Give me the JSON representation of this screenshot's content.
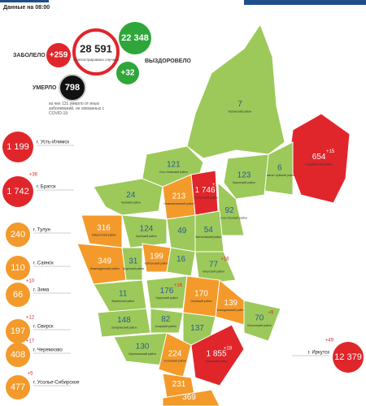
{
  "header": {
    "date": "Данные на 08:00"
  },
  "stats": {
    "sick_label": "ЗАБОЛЕЛО",
    "sick_delta": "+259",
    "total": "28 591",
    "total_caption": "зарегистрировано случаев",
    "recovered": "22 348",
    "recovered_label": "ВЫЗДОРОВЕЛО",
    "recovered_delta": "+32",
    "dead_label": "УМЕРЛО",
    "dead": "798",
    "dead_note": "из них 131 умерло от иных заболеваний, не связанных с COVID-19"
  },
  "cities": [
    {
      "name": "г. Усть-Илимск",
      "value": "1 199",
      "color": "#e0262b"
    },
    {
      "name": "г. Братск",
      "value": "1 742",
      "delta": "+36",
      "color": "#e0262b"
    },
    {
      "name": "г. Тулун",
      "value": "240",
      "color": "#f39a2b"
    },
    {
      "name": "г. Саянск",
      "value": "110",
      "color": "#f39a2b"
    },
    {
      "name": "г. Зима",
      "value": "66",
      "delta": "+10",
      "color": "#f39a2b"
    },
    {
      "name": "г. Свирск",
      "value": "197",
      "delta": "+12",
      "color": "#f39a2b"
    },
    {
      "name": "г. Черемхово",
      "value": "408",
      "delta": "+17",
      "color": "#f39a2b"
    },
    {
      "name": "г. Усолье-Сибирское",
      "value": "477",
      "delta": "+5",
      "color": "#f39a2b"
    },
    {
      "name": "г. Иркутск",
      "value": "12 379",
      "delta": "+49",
      "color": "#e0262b"
    }
  ],
  "regions": [
    {
      "name": "Катангский район",
      "value": "7",
      "color": "#9cc95a"
    },
    {
      "name": "Бодайбинский район",
      "value": "654",
      "delta": "+15",
      "color": "#e0262b"
    },
    {
      "name": "Мамско-Чуйский район",
      "value": "6",
      "color": "#9cc95a"
    },
    {
      "name": "Киренский район",
      "value": "123",
      "color": "#9cc95a"
    },
    {
      "name": "Усть-Илимский район",
      "value": "121",
      "color": "#9cc95a"
    },
    {
      "name": "Усть-Кутский район",
      "value": "1 746",
      "delta": "+10",
      "color": "#e0262b"
    },
    {
      "name": "Нижнеилимский район",
      "value": "213",
      "color": "#f39a2b"
    },
    {
      "name": "Казачинско-Ленский район",
      "value": "92",
      "color": "#9cc95a"
    },
    {
      "name": "Чунский район",
      "value": "24",
      "color": "#9cc95a"
    },
    {
      "name": "Тайшетский район",
      "value": "316",
      "color": "#f39a2b"
    },
    {
      "name": "Братский район",
      "value": "124",
      "color": "#9cc95a"
    },
    {
      "value": "49",
      "color": "#9cc95a"
    },
    {
      "name": "Жигаловский район",
      "value": "54",
      "color": "#9cc95a"
    },
    {
      "name": "Нижнеудинский район",
      "value": "349",
      "color": "#f39a2b"
    },
    {
      "name": "Тулунский район",
      "value": "31",
      "color": "#9cc95a"
    },
    {
      "name": "Куйтунский район",
      "value": "199",
      "color": "#f39a2b"
    },
    {
      "value": "16",
      "color": "#9cc95a"
    },
    {
      "name": "Качугский район",
      "value": "77",
      "delta": "+16",
      "color": "#9cc95a"
    },
    {
      "name": "Зиминский район",
      "value": "11",
      "color": "#9cc95a"
    },
    {
      "name": "Нукутский район",
      "value": "176",
      "delta": "+16",
      "color": "#9cc95a"
    },
    {
      "name": "Осинский район",
      "value": "170",
      "color": "#f39a2b"
    },
    {
      "name": "Заларинский район",
      "value": "148",
      "color": "#9cc95a"
    },
    {
      "name": "Аларский район",
      "value": "82",
      "color": "#9cc95a"
    },
    {
      "name": "Баяндаевский район",
      "value": "139",
      "color": "#f39a2b"
    },
    {
      "value": "137",
      "color": "#9cc95a"
    },
    {
      "name": "Ольхонский район",
      "value": "70",
      "delta": "+9",
      "color": "#9cc95a"
    },
    {
      "name": "Черемховский район",
      "value": "130",
      "color": "#9cc95a"
    },
    {
      "name": "Усольский район",
      "value": "224",
      "color": "#f39a2b"
    },
    {
      "name": "Иркутский район",
      "value": "1 855",
      "delta": "+18",
      "color": "#e0262b"
    },
    {
      "value": "231",
      "color": "#f39a2b"
    },
    {
      "value": "369",
      "color": "#f39a2b"
    }
  ]
}
